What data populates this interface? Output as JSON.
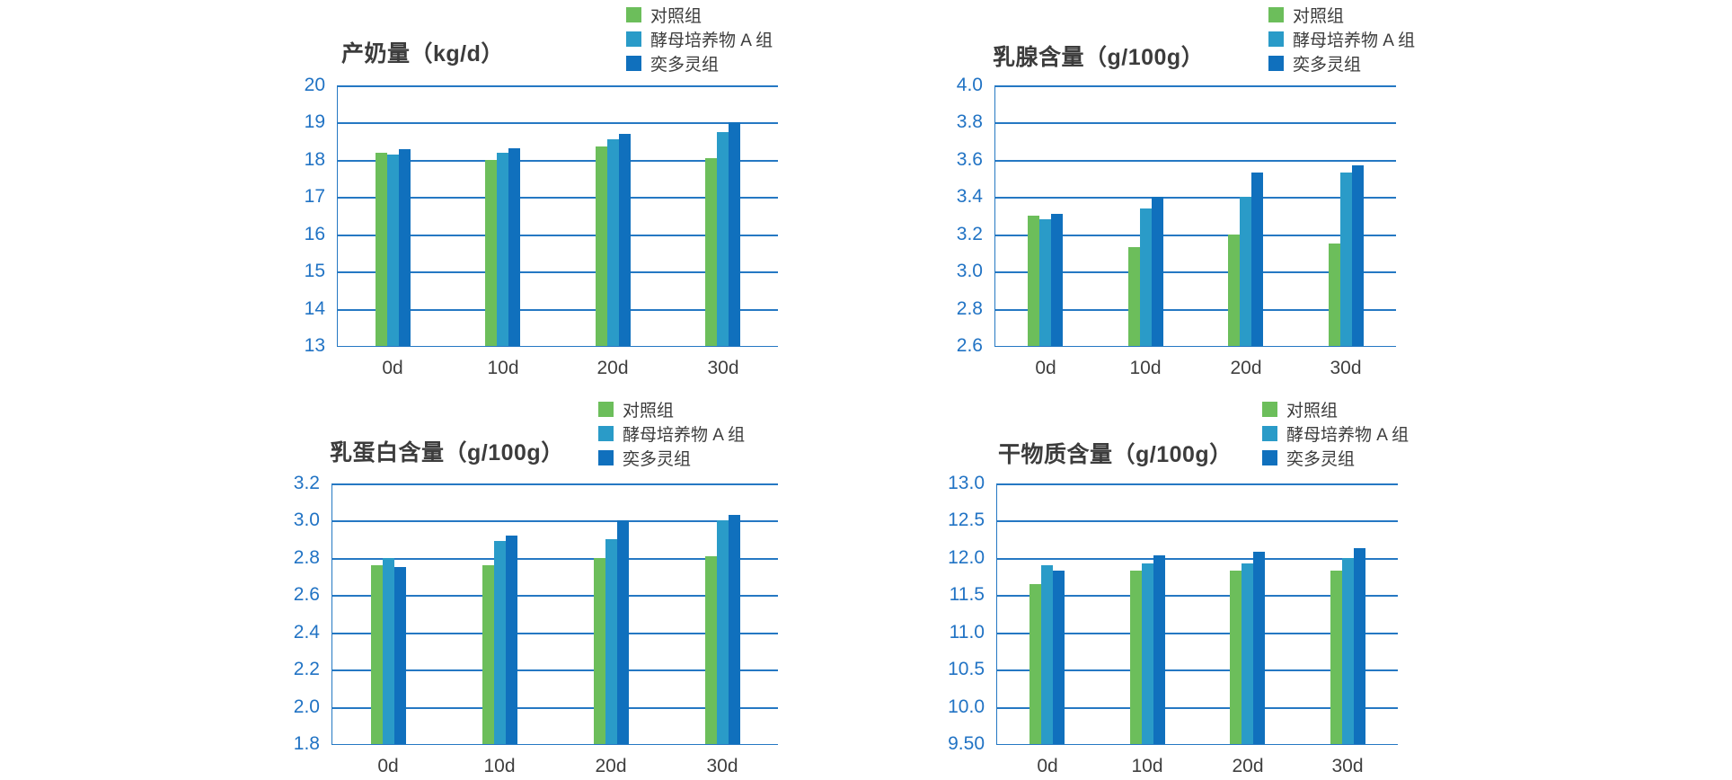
{
  "page": {
    "background": "#ffffff"
  },
  "colors": {
    "series": [
      "#6CBE5B",
      "#2A9BC8",
      "#1070BD"
    ],
    "grid_axis": "#2578C3",
    "y_tick_label": "#2173C4",
    "x_tick_label": "#3F3F3F",
    "title_text": "#3C3C3C",
    "legend_text": "#3C3C3C"
  },
  "legend": {
    "items": [
      {
        "label": "对照组",
        "color": "#6CBE5B"
      },
      {
        "label": "酵母培养物 A 组",
        "color": "#2A9BC8"
      },
      {
        "label": "奕多灵组",
        "color": "#1070BD"
      }
    ]
  },
  "chart_data": [
    {
      "type": "bar",
      "title": "产奶量（kg/d）",
      "categories": [
        "0d",
        "10d",
        "20d",
        "30d"
      ],
      "series": [
        {
          "name": "对照组",
          "color": "#6CBE5B",
          "values": [
            18.2,
            18.0,
            18.35,
            18.05
          ]
        },
        {
          "name": "酵母培养物 A 组",
          "color": "#2A9BC8",
          "values": [
            18.15,
            18.2,
            18.55,
            18.75
          ]
        },
        {
          "name": "奕多灵组",
          "color": "#1070BD",
          "values": [
            18.28,
            18.3,
            18.7,
            19.0
          ]
        }
      ],
      "xlabel": "",
      "ylabel": "",
      "ylim": [
        13,
        20
      ],
      "ytick_labels": [
        "13",
        "14",
        "15",
        "16",
        "17",
        "18",
        "19",
        "20"
      ],
      "grid": true,
      "legend_position": "top-right"
    },
    {
      "type": "bar",
      "title": "乳腺含量（g/100g）",
      "categories": [
        "0d",
        "10d",
        "20d",
        "30d"
      ],
      "series": [
        {
          "name": "对照组",
          "color": "#6CBE5B",
          "values": [
            3.3,
            3.13,
            3.2,
            3.15
          ]
        },
        {
          "name": "酵母培养物 A 组",
          "color": "#2A9BC8",
          "values": [
            3.28,
            3.34,
            3.4,
            3.53
          ]
        },
        {
          "name": "奕多灵组",
          "color": "#1070BD",
          "values": [
            3.31,
            3.4,
            3.53,
            3.57
          ]
        }
      ],
      "xlabel": "",
      "ylabel": "",
      "ylim": [
        2.6,
        4.0
      ],
      "ytick_labels": [
        "2.6",
        "2.8",
        "3.0",
        "3.2",
        "3.4",
        "3.6",
        "3.8",
        "4.0"
      ],
      "grid": true,
      "legend_position": "top-right"
    },
    {
      "type": "bar",
      "title": "乳蛋白含量（g/100g）",
      "categories": [
        "0d",
        "10d",
        "20d",
        "30d"
      ],
      "series": [
        {
          "name": "对照组",
          "color": "#6CBE5B",
          "values": [
            2.76,
            2.76,
            2.8,
            2.81
          ]
        },
        {
          "name": "酵母培养物 A 组",
          "color": "#2A9BC8",
          "values": [
            2.8,
            2.89,
            2.9,
            3.0
          ]
        },
        {
          "name": "奕多灵组",
          "color": "#1070BD",
          "values": [
            2.75,
            2.92,
            3.0,
            3.03
          ]
        }
      ],
      "xlabel": "",
      "ylabel": "",
      "ylim": [
        1.8,
        3.2
      ],
      "ytick_labels": [
        "1.8",
        "2.0",
        "2.2",
        "2.4",
        "2.6",
        "2.8",
        "3.0",
        "3.2"
      ],
      "grid": true,
      "legend_position": "top-right"
    },
    {
      "type": "bar",
      "title": "干物质含量（g/100g）",
      "categories": [
        "0d",
        "10d",
        "20d",
        "30d"
      ],
      "series": [
        {
          "name": "对照组",
          "color": "#6CBE5B",
          "values": [
            11.65,
            11.83,
            11.83,
            11.83
          ]
        },
        {
          "name": "酵母培养物 A 组",
          "color": "#2A9BC8",
          "values": [
            11.9,
            11.93,
            11.93,
            12.0
          ]
        },
        {
          "name": "奕多灵组",
          "color": "#1070BD",
          "values": [
            11.83,
            12.04,
            12.08,
            12.13
          ]
        }
      ],
      "xlabel": "",
      "ylabel": "",
      "ylim": [
        9.5,
        13.0
      ],
      "ytick_labels": [
        "9.50",
        "10.0",
        "10.5",
        "11.0",
        "11.5",
        "12.0",
        "12.5",
        "13.0"
      ],
      "grid": true,
      "legend_position": "top-right"
    }
  ]
}
